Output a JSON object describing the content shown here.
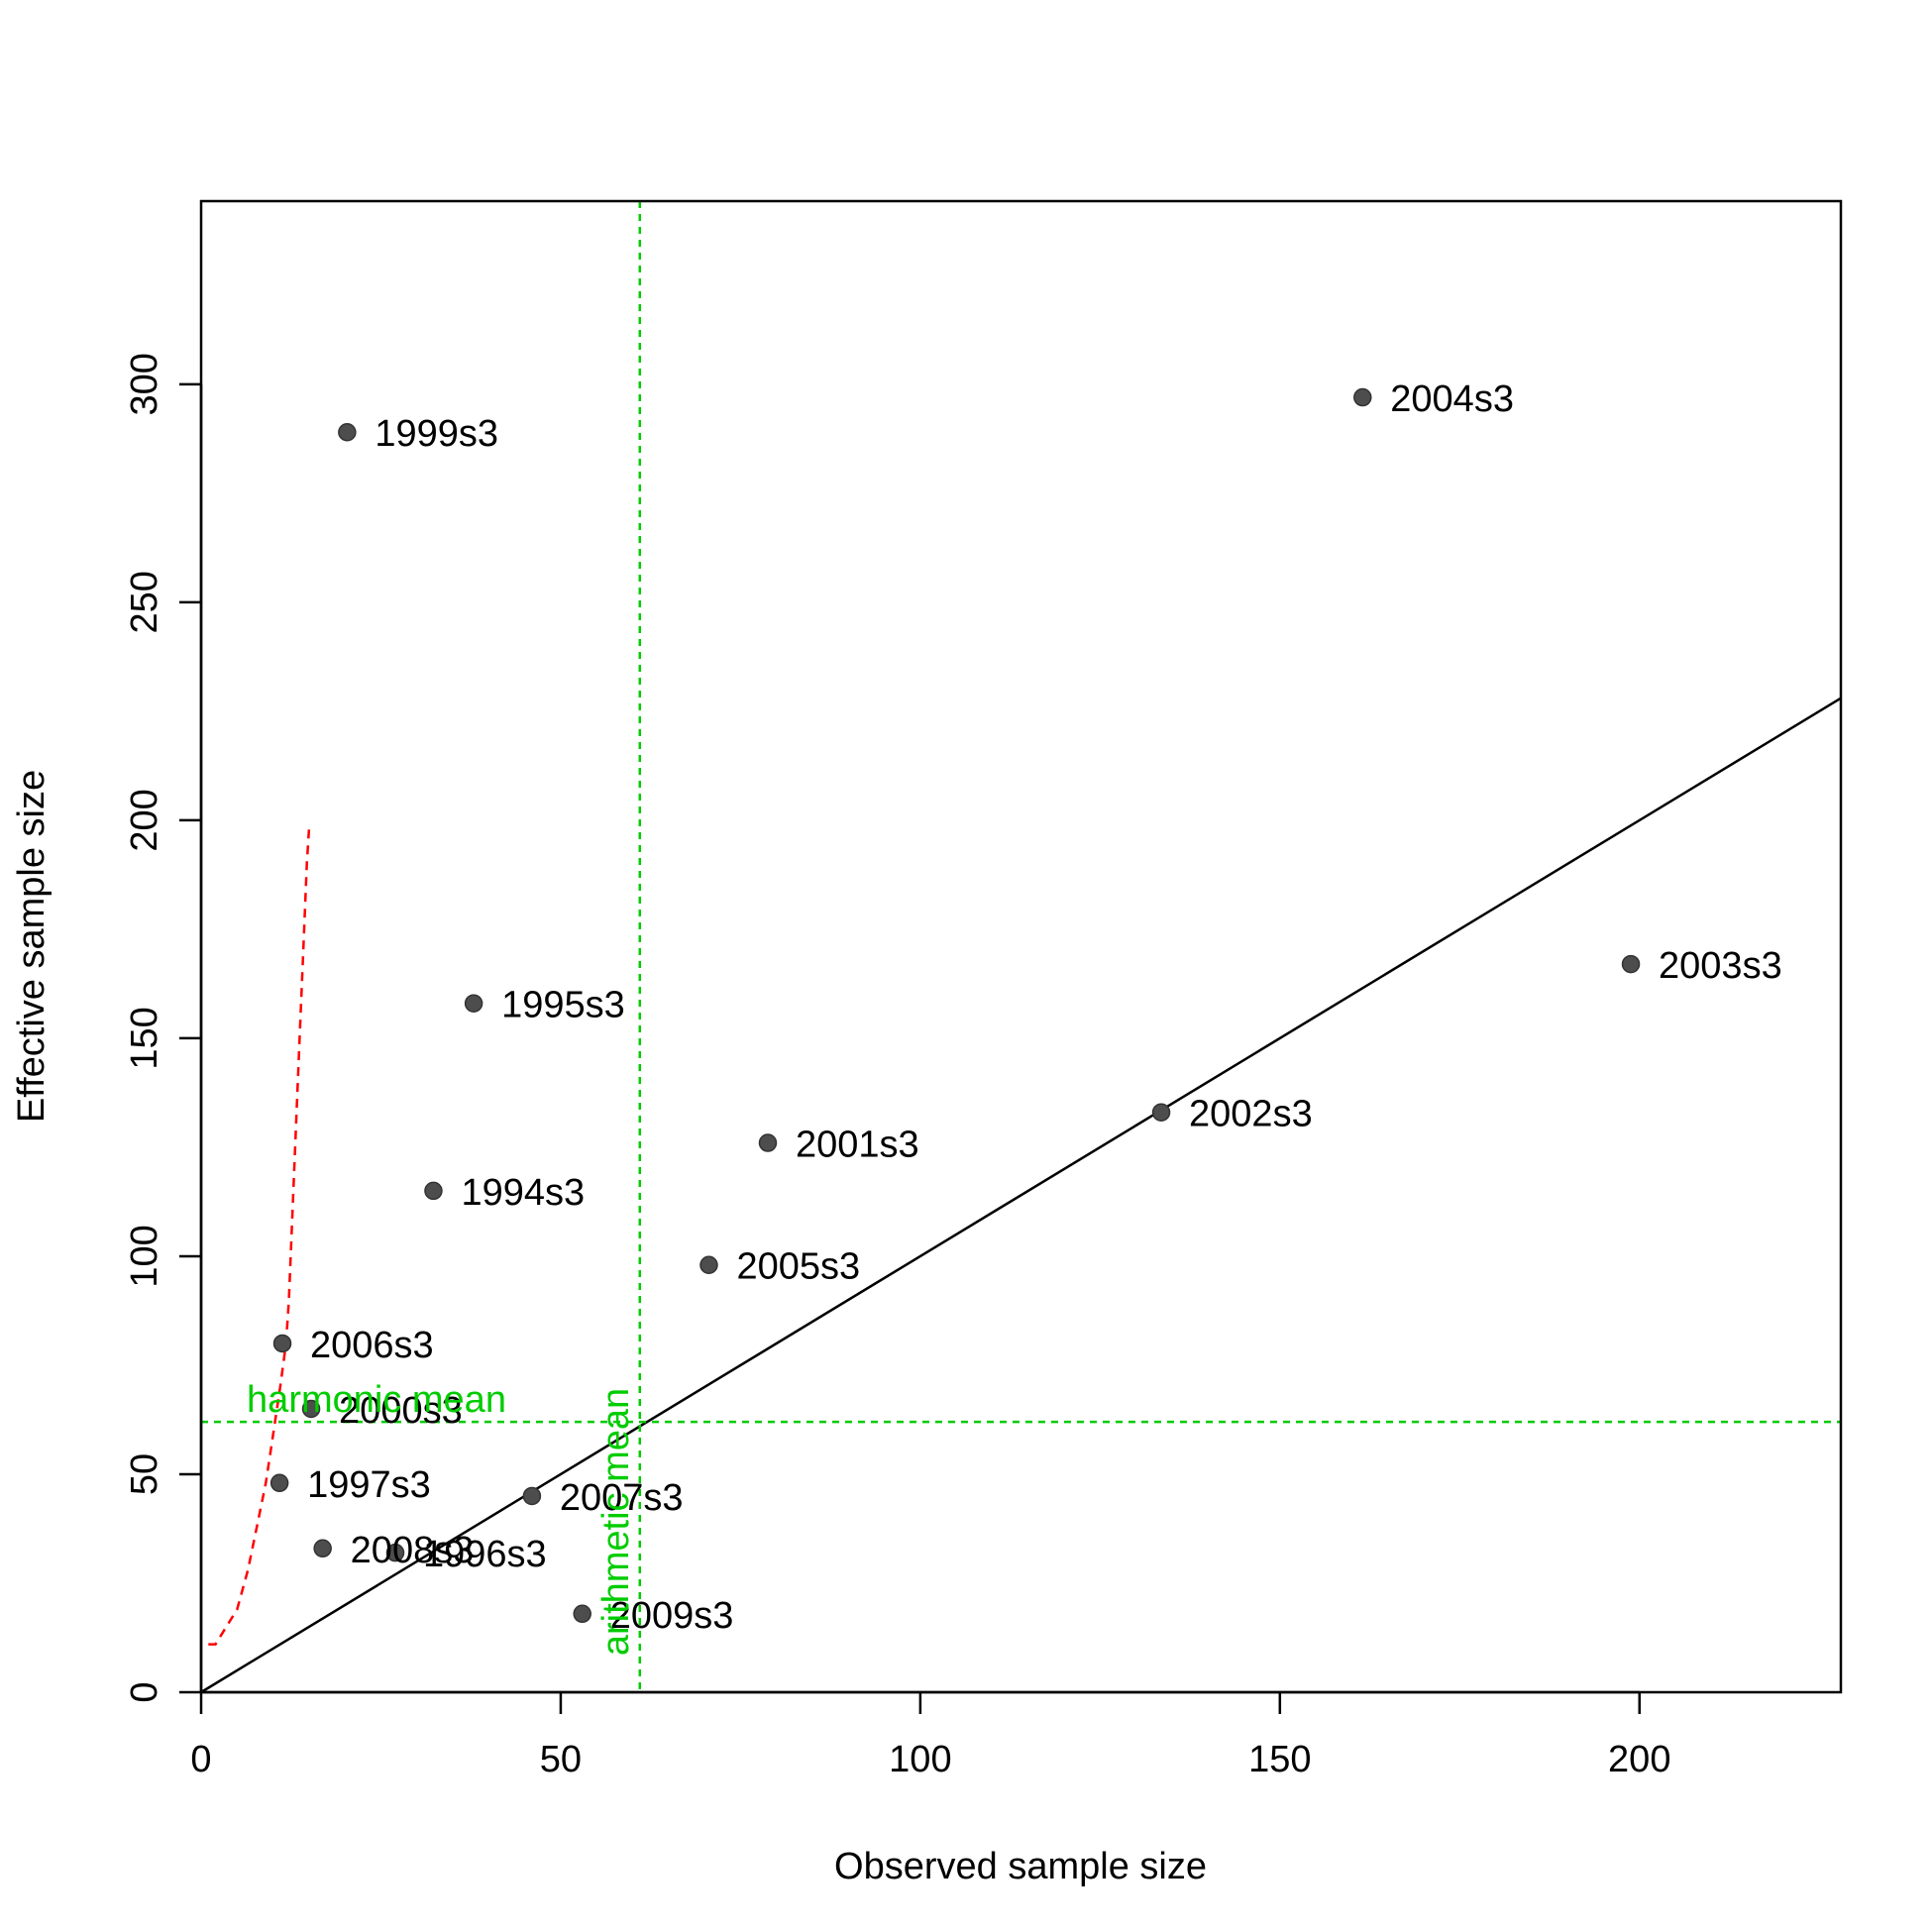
{
  "chart_data": {
    "type": "scatter",
    "xlabel": "Observed sample size",
    "ylabel": "Effective sample size",
    "xlim": [
      0,
      228
    ],
    "ylim": [
      0,
      342
    ],
    "xticks": [
      0,
      50,
      100,
      150,
      200
    ],
    "yticks": [
      0,
      50,
      100,
      150,
      200,
      250,
      300
    ],
    "grid": false,
    "points": [
      {
        "label": "1994s3",
        "x": 32.3,
        "y": 115
      },
      {
        "label": "1995s3",
        "x": 37.9,
        "y": 158
      },
      {
        "label": "1996s3",
        "x": 27.0,
        "y": 32
      },
      {
        "label": "1997s3",
        "x": 10.9,
        "y": 48
      },
      {
        "label": "1999s3",
        "x": 20.3,
        "y": 289
      },
      {
        "label": "2000s3",
        "x": 15.3,
        "y": 65
      },
      {
        "label": "2001s3",
        "x": 78.8,
        "y": 126
      },
      {
        "label": "2002s3",
        "x": 133.5,
        "y": 133
      },
      {
        "label": "2003s3",
        "x": 198.8,
        "y": 167
      },
      {
        "label": "2004s3",
        "x": 161.5,
        "y": 297
      },
      {
        "label": "2005s3",
        "x": 70.6,
        "y": 98
      },
      {
        "label": "2006s3",
        "x": 11.3,
        "y": 80
      },
      {
        "label": "2007s3",
        "x": 46.0,
        "y": 45
      },
      {
        "label": "2008s3",
        "x": 16.9,
        "y": 33
      },
      {
        "label": "2009s3",
        "x": 53.0,
        "y": 18
      }
    ],
    "identity_line": {
      "color": "#000000"
    },
    "harmonic_mean": {
      "label": "harmonic mean",
      "value": 62,
      "color": "#00cc00"
    },
    "arithmetic_mean": {
      "label": "arithmetic mean",
      "value": 61,
      "color": "#00cc00"
    },
    "smoother": {
      "color": "#ff0000",
      "x": [
        1.0,
        2.0,
        3.5,
        5.0,
        6.5,
        8.0,
        9.0,
        10.0,
        11.0,
        11.8,
        12.2,
        12.7,
        13.2,
        13.7,
        14.2,
        14.7,
        15.0
      ],
      "y": [
        11,
        11,
        15,
        19,
        28,
        40,
        48,
        59,
        70,
        80,
        90,
        110,
        130,
        150,
        170,
        190,
        198
      ]
    },
    "point_color": "#4d4d4d"
  }
}
